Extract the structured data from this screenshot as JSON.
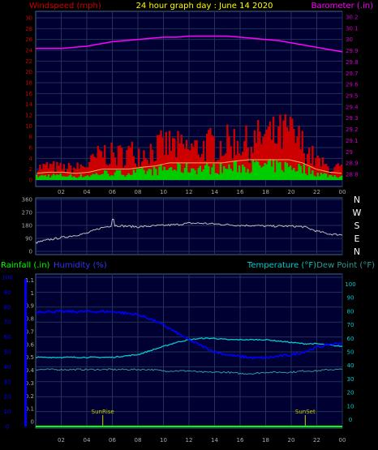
{
  "header": {
    "wind_label": "Windspeed (mph)",
    "title": "24 hour graph day : June 14 2020",
    "baro_label": "Barometer (.in)"
  },
  "compass": [
    "N",
    "W",
    "S",
    "E",
    "N"
  ],
  "legend": {
    "rain": "Rainfall (.in)",
    "humidity": "Humidity (%)",
    "temperature": "Temperature (°F)",
    "dewpoint": "Dew Point (°F)"
  },
  "events": {
    "sunrise": "SunRise",
    "sunset": "SunSet"
  },
  "colors": {
    "wind_gust": "#cc0000",
    "wind_avg": "#00cc00",
    "barometer": "#ff00ff",
    "direction": "#bbbbbb",
    "humidity": "#0000ff",
    "temperature": "#00cccc",
    "dewpoint": "#339999",
    "rain": "#00ff00",
    "event": "#cccc00",
    "axis_left": "#cc0000",
    "axis_right": "#cc00cc",
    "axis_blue": "#0000ff",
    "axis_teal": "#00cccc"
  },
  "chart_data": [
    {
      "type": "area",
      "name": "wind_and_barometer",
      "x_ticks": [
        "02",
        "04",
        "06",
        "08",
        "10",
        "12",
        "14",
        "16",
        "18",
        "20",
        "22",
        "00"
      ],
      "x_range": [
        0,
        24
      ],
      "y_left_ticks": [
        "0",
        "2",
        "4",
        "6",
        "8",
        "10",
        "12",
        "14",
        "16",
        "18",
        "20",
        "22",
        "24",
        "26",
        "28",
        "30"
      ],
      "y_left_range": [
        0,
        30
      ],
      "y_right_ticks": [
        "28.8",
        "28.9",
        "29",
        "29.1",
        "29.2",
        "29.3",
        "29.4",
        "29.5",
        "29.6",
        "29.7",
        "29.8",
        "29.9",
        "30",
        "30.1",
        "30.2"
      ],
      "y_right_range": [
        28.75,
        30.25
      ],
      "gust_hourly": [
        3,
        3.5,
        3,
        3,
        4,
        7,
        6,
        7,
        7,
        8,
        9,
        8,
        8,
        9,
        9,
        10,
        9,
        11,
        11,
        12,
        9,
        5,
        3,
        3
      ],
      "avg_hourly": [
        0.8,
        1,
        1,
        0.8,
        1,
        1.5,
        1.5,
        1.5,
        1.8,
        2,
        2.5,
        2.5,
        2.5,
        2.5,
        2.5,
        2.8,
        3,
        3,
        3,
        3,
        2.5,
        1.5,
        1,
        0.8
      ],
      "baro_hourly": [
        29.92,
        29.92,
        29.92,
        29.93,
        29.94,
        29.96,
        29.98,
        29.99,
        30.0,
        30.01,
        30.02,
        30.02,
        30.03,
        30.03,
        30.03,
        30.03,
        30.02,
        30.01,
        30.0,
        29.99,
        29.97,
        29.95,
        29.93,
        29.91,
        29.89
      ]
    },
    {
      "type": "line",
      "name": "wind_direction",
      "x_range": [
        0,
        24
      ],
      "y_ticks": [
        "360",
        "270",
        "180",
        "90",
        "0"
      ],
      "y_range": [
        0,
        360
      ],
      "hourly": [
        60,
        80,
        95,
        110,
        125,
        160,
        180,
        175,
        170,
        175,
        180,
        185,
        195,
        195,
        190,
        185,
        180,
        180,
        175,
        175,
        175,
        170,
        140,
        120,
        115
      ]
    },
    {
      "type": "line",
      "name": "rain_humidity_temperature",
      "x_ticks": [
        "02",
        "04",
        "06",
        "08",
        "10",
        "12",
        "14",
        "16",
        "18",
        "20",
        "22",
        "00"
      ],
      "x_range": [
        0,
        24
      ],
      "y_humidity_ticks": [
        "0",
        "10",
        "20",
        "30",
        "40",
        "50",
        "60",
        "70",
        "80",
        "90",
        "100"
      ],
      "y_rain_ticks": [
        "0",
        "0.1",
        "0.2",
        "0.3",
        "0.4",
        "0.5",
        "0.6",
        "0.7",
        "0.8",
        "0.9",
        "1",
        "1.1"
      ],
      "y_humidity_range": [
        0,
        100
      ],
      "y_temp_ticks": [
        "0",
        "10",
        "20",
        "30",
        "40",
        "50",
        "60",
        "70",
        "80",
        "90",
        "100"
      ],
      "y_temp_range": [
        -5,
        105
      ],
      "humidity_hourly": [
        77,
        77,
        77,
        77,
        77,
        77,
        77,
        76,
        75,
        72,
        68,
        63,
        58,
        54,
        50,
        48,
        47,
        46,
        46,
        47,
        48,
        50,
        53,
        55,
        56
      ],
      "temperature_hourly": [
        46,
        46,
        46,
        46,
        46,
        46,
        46,
        47,
        48,
        51,
        54,
        57,
        59,
        60,
        60,
        59,
        59,
        59,
        59,
        58,
        57,
        56,
        56,
        55,
        54
      ],
      "dewpoint_hourly": [
        37,
        37,
        37,
        37,
        37,
        37,
        37,
        37,
        37,
        37,
        36,
        36,
        36,
        35,
        35,
        35,
        34,
        34,
        35,
        35,
        35,
        36,
        36,
        37,
        37
      ],
      "rain_hourly": [
        0,
        0,
        0,
        0,
        0,
        0,
        0,
        0,
        0,
        0,
        0,
        0,
        0,
        0,
        0,
        0,
        0,
        0,
        0,
        0,
        0,
        0,
        0,
        0,
        0
      ],
      "sunrise_hour": 5.25,
      "sunset_hour": 21.1
    }
  ]
}
